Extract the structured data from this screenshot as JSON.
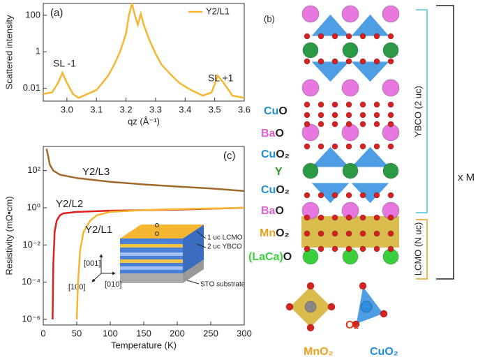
{
  "chart_data": [
    {
      "type": "line",
      "panel": "(a)",
      "xlabel": "qz (Å⁻¹)",
      "ylabel": "Scattered intensity",
      "log_y": true,
      "xlim": [
        2.92,
        3.6
      ],
      "ylim": [
        0.002,
        440
      ],
      "xticks": [
        {
          "value": 3.0,
          "label": "3.0"
        },
        3.1,
        3.2,
        3.3,
        3.4,
        3.5,
        3.6
      ],
      "yticks": [
        0.01,
        1,
        100
      ],
      "legend": "upper right",
      "annotations": [
        "SL -1",
        "SL +1"
      ],
      "series": [
        {
          "name": "Y2/L1",
          "color": "#f5b731",
          "x": [
            2.92,
            2.95,
            2.97,
            2.985,
            3.0,
            3.02,
            3.04,
            3.07,
            3.1,
            3.12,
            3.14,
            3.16,
            3.18,
            3.2,
            3.21,
            3.22,
            3.23,
            3.24,
            3.25,
            3.26,
            3.28,
            3.3,
            3.32,
            3.35,
            3.38,
            3.42,
            3.46,
            3.49,
            3.51,
            3.53,
            3.56,
            3.6
          ],
          "values": [
            0.005,
            0.006,
            0.02,
            0.07,
            0.02,
            0.005,
            0.003,
            0.005,
            0.008,
            0.02,
            0.05,
            0.2,
            1,
            10,
            100,
            440,
            100,
            30,
            120,
            30,
            4,
            0.8,
            0.2,
            0.06,
            0.02,
            0.008,
            0.004,
            0.006,
            0.05,
            0.02,
            0.004,
            0.003
          ]
        }
      ]
    },
    {
      "type": "line",
      "panel": "(c)",
      "xlabel": "Temperature (K)",
      "ylabel": "Resistivity (mΩ•cm)",
      "log_y": true,
      "xlim": [
        0,
        300
      ],
      "ylim": [
        5e-07,
        2000
      ],
      "xticks": [
        0,
        50,
        100,
        150,
        200,
        250,
        300
      ],
      "yticks": [
        {
          "value": 100,
          "label": "10²"
        },
        {
          "value": 1,
          "label": "10⁰"
        },
        {
          "value": 0.01,
          "label": "10⁻²"
        },
        {
          "value": 0.0001,
          "label": "10⁻⁴"
        },
        {
          "value": 1e-06,
          "label": "10⁻⁶"
        }
      ],
      "series": [
        {
          "name": "Y2/L3",
          "color": "#a0692a",
          "x": [
            5,
            10,
            15,
            25,
            50,
            100,
            150,
            200,
            250,
            300
          ],
          "values": [
            1500,
            200,
            100,
            60,
            40,
            25,
            18,
            14,
            11,
            8
          ]
        },
        {
          "name": "Y2/L2",
          "color": "#e0201b",
          "x": [
            14,
            15,
            17,
            20,
            25,
            30,
            50,
            100,
            200,
            300
          ],
          "values": [
            1e-06,
            0.001,
            0.05,
            0.2,
            0.4,
            0.5,
            0.6,
            0.7,
            0.8,
            1
          ]
        },
        {
          "name": "Y2/L1",
          "color": "#f5b731",
          "x": [
            50,
            52,
            55,
            60,
            70,
            80,
            100,
            150,
            200,
            300
          ],
          "values": [
            1e-06,
            0.0001,
            0.005,
            0.05,
            0.2,
            0.4,
            0.6,
            0.75,
            0.85,
            1
          ]
        }
      ],
      "inset": {
        "layer_labels": [
          "1 uc LCMO",
          "2 uc YBCO",
          "STO substrate"
        ],
        "axes": [
          "[001]",
          "[100]",
          "[010]"
        ]
      }
    }
  ],
  "structure": {
    "panel": "(b)",
    "layers": [
      {
        "a": "Cu",
        "b": "O"
      },
      {
        "a": "Ba",
        "b": "O"
      },
      {
        "a": "Cu",
        "b": "O₂"
      },
      {
        "a": "Y",
        "b": ""
      },
      {
        "a": "Cu",
        "b": "O₂"
      },
      {
        "a": "Ba",
        "b": "O"
      },
      {
        "a": "Mn",
        "b": "O₂"
      },
      {
        "a": "(LaCa)",
        "b": "O"
      }
    ],
    "brackets": [
      "YBCO (2 uc)",
      "LCMO (N uc)",
      "x M"
    ],
    "bottom": [
      "Oₐ",
      "MnO₂",
      "CuO₂"
    ]
  }
}
